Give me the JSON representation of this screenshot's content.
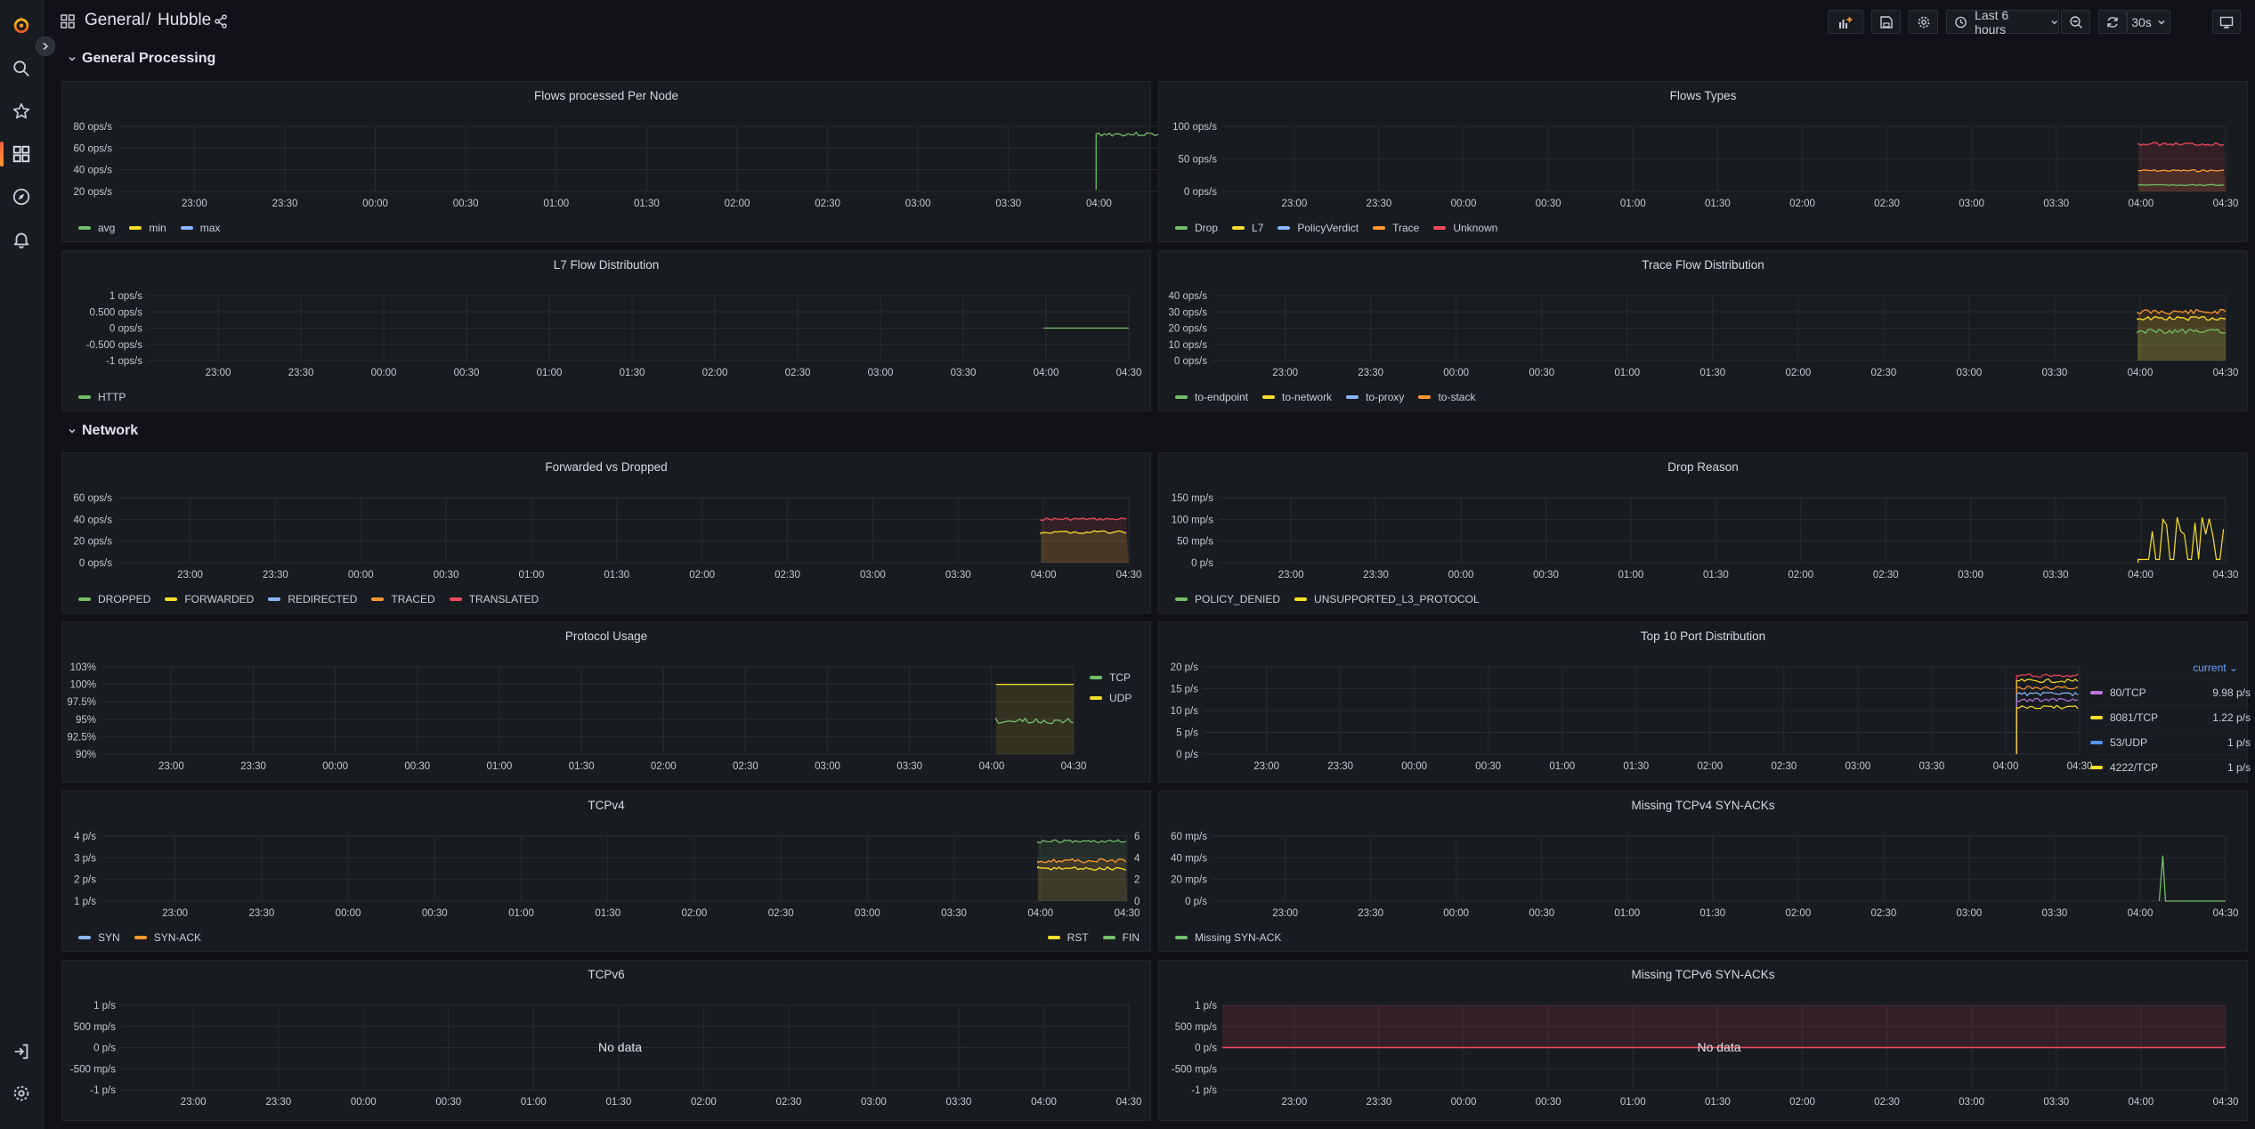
{
  "breadcrumb": {
    "folder": "General",
    "separator": "/",
    "dashboard": "Hubble"
  },
  "toolbar": {
    "time_range": "Last 6 hours",
    "refresh_interval": "30s"
  },
  "sidebar": {
    "icons": [
      "grafana-logo-icon",
      "search-icon",
      "starred-icon",
      "dashboards-icon",
      "explore-icon",
      "alerting-icon",
      "sign-in-icon",
      "settings-icon"
    ]
  },
  "colors": {
    "green": "#73bf69",
    "yellow": "#fade2a",
    "blue": "#5794f2",
    "cyan": "#8ab8ff",
    "orange": "#ff9830",
    "red": "#f2495c",
    "purple": "#b877d9"
  },
  "rows": [
    {
      "title": "General Processing"
    },
    {
      "title": "Network"
    }
  ],
  "x_ticks": [
    "23:00",
    "23:30",
    "00:00",
    "00:30",
    "01:00",
    "01:30",
    "02:00",
    "02:30",
    "03:00",
    "03:30",
    "04:00",
    "04:30"
  ],
  "panels": [
    {
      "id": "flows-processed",
      "title": "Flows processed Per Node",
      "y_ticks": [
        "80 ops/s",
        "60 ops/s",
        "40 ops/s",
        "20 ops/s"
      ],
      "legend": [
        {
          "label": "avg",
          "color": "#73bf69"
        },
        {
          "label": "min",
          "color": "#fade2a"
        },
        {
          "label": "max",
          "color": "#8ab8ff"
        }
      ]
    },
    {
      "id": "flows-types",
      "title": "Flows Types",
      "y_ticks": [
        "100 ops/s",
        "50 ops/s",
        "0 ops/s"
      ],
      "legend": [
        {
          "label": "Drop",
          "color": "#73bf69"
        },
        {
          "label": "L7",
          "color": "#fade2a"
        },
        {
          "label": "PolicyVerdict",
          "color": "#8ab8ff"
        },
        {
          "label": "Trace",
          "color": "#ff9830"
        },
        {
          "label": "Unknown",
          "color": "#f2495c"
        }
      ]
    },
    {
      "id": "l7-flow",
      "title": "L7 Flow Distribution",
      "y_ticks": [
        "1 ops/s",
        "0.500 ops/s",
        "0 ops/s",
        "-0.500 ops/s",
        "-1 ops/s"
      ],
      "legend": [
        {
          "label": "HTTP",
          "color": "#73bf69"
        }
      ]
    },
    {
      "id": "trace-flow",
      "title": "Trace Flow Distribution",
      "y_ticks": [
        "40 ops/s",
        "30 ops/s",
        "20 ops/s",
        "10 ops/s",
        "0 ops/s"
      ],
      "legend": [
        {
          "label": "to-endpoint",
          "color": "#73bf69"
        },
        {
          "label": "to-network",
          "color": "#fade2a"
        },
        {
          "label": "to-proxy",
          "color": "#8ab8ff"
        },
        {
          "label": "to-stack",
          "color": "#ff9830"
        }
      ]
    },
    {
      "id": "forwarded-dropped",
      "title": "Forwarded vs Dropped",
      "y_ticks": [
        "60 ops/s",
        "40 ops/s",
        "20 ops/s",
        "0 ops/s"
      ],
      "legend": [
        {
          "label": "DROPPED",
          "color": "#73bf69"
        },
        {
          "label": "FORWARDED",
          "color": "#fade2a"
        },
        {
          "label": "REDIRECTED",
          "color": "#8ab8ff"
        },
        {
          "label": "TRACED",
          "color": "#ff9830"
        },
        {
          "label": "TRANSLATED",
          "color": "#f2495c"
        }
      ]
    },
    {
      "id": "drop-reason",
      "title": "Drop Reason",
      "y_ticks": [
        "150 mp/s",
        "100 mp/s",
        "50 mp/s",
        "0 p/s"
      ],
      "legend": [
        {
          "label": "POLICY_DENIED",
          "color": "#73bf69"
        },
        {
          "label": "UNSUPPORTED_L3_PROTOCOL",
          "color": "#fade2a"
        }
      ]
    },
    {
      "id": "protocol-usage",
      "title": "Protocol Usage",
      "y_ticks": [
        "103%",
        "100%",
        "97.5%",
        "95%",
        "92.5%",
        "90%"
      ],
      "legend": [
        {
          "label": "TCP",
          "color": "#73bf69"
        },
        {
          "label": "UDP",
          "color": "#fade2a"
        }
      ]
    },
    {
      "id": "top-ports",
      "title": "Top 10 Port Distribution",
      "y_ticks": [
        "20 p/s",
        "15 p/s",
        "10 p/s",
        "5 p/s",
        "0 p/s"
      ],
      "legend_header": "current",
      "legend": [
        {
          "label": "80/TCP",
          "color": "#b877d9",
          "value": "9.98 p/s"
        },
        {
          "label": "8081/TCP",
          "color": "#fade2a",
          "value": "1.22 p/s"
        },
        {
          "label": "53/UDP",
          "color": "#5794f2",
          "value": "1 p/s"
        },
        {
          "label": "4222/TCP",
          "color": "#fade2a",
          "value": "1 p/s"
        }
      ]
    },
    {
      "id": "tcpv4",
      "title": "TCPv4",
      "y_ticks": [
        "4 p/s",
        "3 p/s",
        "2 p/s",
        "1 p/s"
      ],
      "y2_ticks": [
        "6",
        "4",
        "2",
        "0"
      ],
      "legend": [
        {
          "label": "SYN",
          "color": "#8ab8ff"
        },
        {
          "label": "SYN-ACK",
          "color": "#ff9830"
        }
      ],
      "legend_right": [
        {
          "label": "RST",
          "color": "#fade2a"
        },
        {
          "label": "FIN",
          "color": "#73bf69"
        }
      ]
    },
    {
      "id": "missing-tcpv4",
      "title": "Missing TCPv4 SYN-ACKs",
      "y_ticks": [
        "60 mp/s",
        "40 mp/s",
        "20 mp/s",
        "0 p/s"
      ],
      "legend": [
        {
          "label": "Missing SYN-ACK",
          "color": "#73bf69"
        }
      ]
    },
    {
      "id": "tcpv6",
      "title": "TCPv6",
      "y_ticks": [
        "1 p/s",
        "500 mp/s",
        "0 p/s",
        "-500 mp/s",
        "-1 p/s"
      ],
      "no_data": "No data"
    },
    {
      "id": "missing-tcpv6",
      "title": "Missing TCPv6 SYN-ACKs",
      "y_ticks": [
        "1 p/s",
        "500 mp/s",
        "0 p/s",
        "-500 mp/s",
        "-1 p/s"
      ],
      "no_data": "No data"
    }
  ]
}
